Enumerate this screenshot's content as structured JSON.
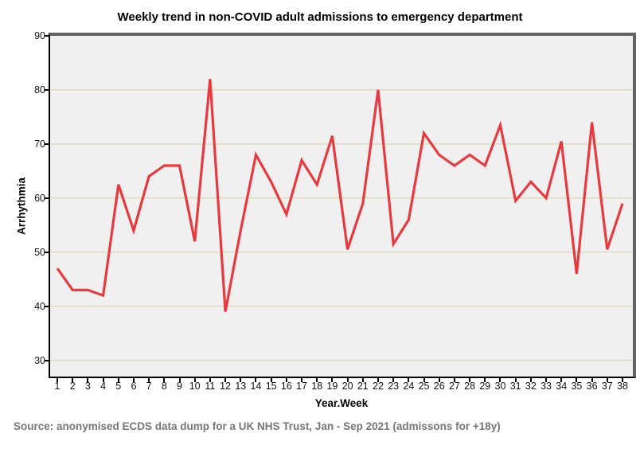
{
  "chart": {
    "title": "Weekly trend in non-COVID adult admissions to emergency department",
    "xlabel": "Year.Week",
    "ylabel": "Arrhythmia",
    "source_note": "Source: anonymised ECDS data dump for a UK NHS Trust, Jan - Sep 2021 (admissons for +18y)"
  },
  "chart_data": {
    "type": "line",
    "title": "Weekly trend in non-COVID adult admissions to emergency department",
    "xlabel": "Year.Week",
    "ylabel": "Arrhythmia",
    "x": [
      1,
      2,
      3,
      4,
      5,
      6,
      7,
      8,
      9,
      10,
      11,
      12,
      13,
      14,
      15,
      16,
      17,
      18,
      19,
      20,
      21,
      22,
      23,
      24,
      25,
      26,
      27,
      28,
      29,
      30,
      31,
      32,
      33,
      34,
      35,
      36,
      37,
      38
    ],
    "values": [
      47,
      43,
      43,
      42,
      62.5,
      54,
      64,
      66,
      66,
      52,
      82,
      39,
      54,
      68,
      63,
      57,
      67,
      62.5,
      71.5,
      50.5,
      59,
      80,
      51.5,
      56,
      72,
      68,
      66,
      68,
      66,
      73.5,
      59.5,
      63,
      60,
      70.5,
      46,
      74,
      50.5,
      59
    ],
    "ylim": [
      27,
      90
    ],
    "yticks": [
      90,
      80,
      70,
      60,
      50,
      40,
      30
    ],
    "grid": "horizontal",
    "legend": "none",
    "colors": {
      "line": "#e83a3e",
      "gridline": "#d8d2a4",
      "plot_bg": "#f0f0f0",
      "frame": "#636363",
      "axis": "#000000",
      "tick_label": "#111111",
      "source_text": "#767676"
    }
  }
}
